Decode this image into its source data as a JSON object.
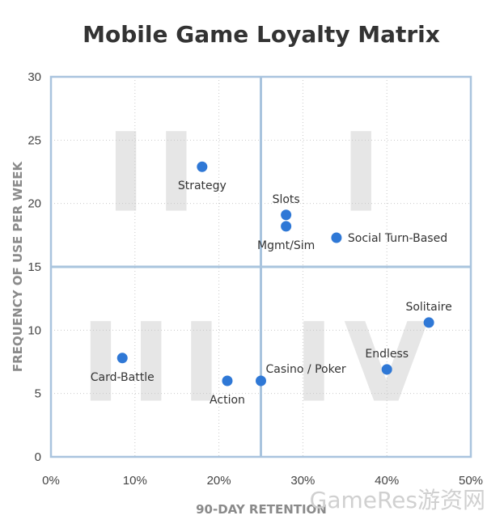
{
  "chart_data": {
    "type": "scatter",
    "title": "Mobile Game Loyalty Matrix",
    "xlabel": "90-DAY RETENTION",
    "ylabel": "FREQUENCY OF USE PER WEEK",
    "xlim": [
      0,
      0.5
    ],
    "ylim": [
      0,
      30
    ],
    "x_ticks": [
      "0%",
      "10%",
      "20%",
      "30%",
      "40%",
      "50%"
    ],
    "y_ticks": [
      "0",
      "5",
      "10",
      "15",
      "20",
      "25",
      "30"
    ],
    "grid": true,
    "quadrant_dividers": {
      "x": 0.25,
      "y": 15
    },
    "quadrant_labels": [
      "I",
      "II",
      "III",
      "IV"
    ],
    "marker_color": "#2f78d6",
    "axis_color": "#a9c4de",
    "points": [
      {
        "label": "Strategy",
        "x": 0.18,
        "y": 22.9,
        "label_pos": "below"
      },
      {
        "label": "Slots",
        "x": 0.28,
        "y": 19.1,
        "label_pos": "above"
      },
      {
        "label": "Mgmt/Sim",
        "x": 0.28,
        "y": 18.2,
        "label_pos": "below"
      },
      {
        "label": "Social Turn-Based",
        "x": 0.34,
        "y": 17.3,
        "label_pos": "right"
      },
      {
        "label": "Solitaire",
        "x": 0.45,
        "y": 10.6,
        "label_pos": "above"
      },
      {
        "label": "Card-Battle",
        "x": 0.085,
        "y": 7.8,
        "label_pos": "below"
      },
      {
        "label": "Endless",
        "x": 0.4,
        "y": 6.9,
        "label_pos": "above"
      },
      {
        "label": "Action",
        "x": 0.21,
        "y": 6.0,
        "label_pos": "below"
      },
      {
        "label": "Casino / Poker",
        "x": 0.25,
        "y": 6.0,
        "label_pos": "above-right"
      }
    ]
  },
  "watermark": "GameRes游资网"
}
